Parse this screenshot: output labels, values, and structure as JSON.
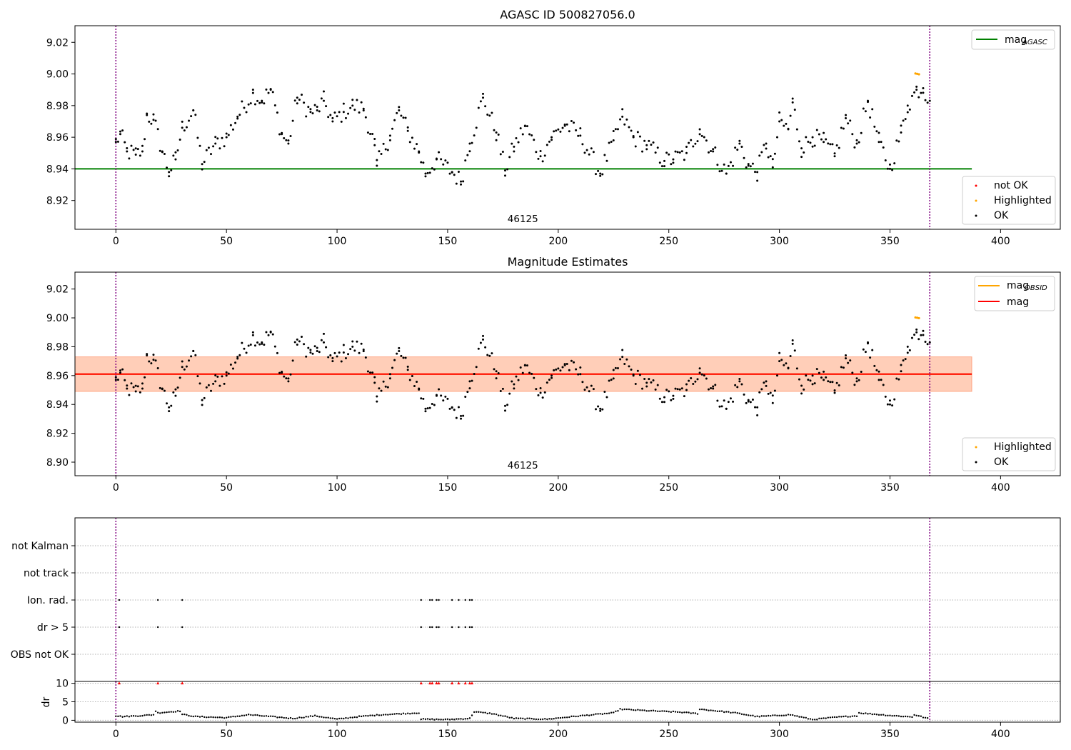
{
  "chart_data": [
    {
      "type": "scatter",
      "title": "AGASC ID 500827056.0",
      "xlim": [
        -18.5,
        427
      ],
      "ylim": [
        8.9018,
        9.0305
      ],
      "x_ticks": [
        0,
        50,
        100,
        150,
        200,
        250,
        300,
        350,
        400
      ],
      "y_ticks": [
        "8.92",
        "8.94",
        "8.96",
        "8.98",
        "9.00",
        "9.02"
      ],
      "obs_label": {
        "text": "46125",
        "x": 184
      },
      "vlines": [
        0,
        368
      ],
      "hlines": [
        {
          "name": "mag_AGASC",
          "y": 8.94,
          "x_range": [
            -18.5,
            387
          ],
          "color": "#008000"
        }
      ],
      "legend_lines": [
        {
          "label": "mag",
          "subscript": "AGASC",
          "color": "#008000"
        }
      ],
      "legend_markers": [
        {
          "label": "not OK",
          "color": "#ff0000"
        },
        {
          "label": "Highlighted",
          "color": "#ffa500"
        },
        {
          "label": "OK",
          "color": "#000000"
        }
      ],
      "highlighted_points": [
        [
          361.5,
          9.0003
        ],
        [
          362.3,
          9.0001
        ],
        [
          363.1,
          8.9998
        ]
      ],
      "ok_anchor_points": [
        [
          0,
          8.957
        ],
        [
          2,
          8.962
        ],
        [
          5,
          8.951
        ],
        [
          9,
          8.949
        ],
        [
          12,
          8.951
        ],
        [
          14,
          8.974
        ],
        [
          17,
          8.971
        ],
        [
          21,
          8.951
        ],
        [
          24,
          8.938
        ],
        [
          27,
          8.946
        ],
        [
          30,
          8.966
        ],
        [
          35,
          8.977
        ],
        [
          39,
          8.943
        ],
        [
          45,
          8.956
        ],
        [
          50,
          8.96
        ],
        [
          55,
          8.973
        ],
        [
          62,
          8.988
        ],
        [
          66,
          8.983
        ],
        [
          70,
          8.99
        ],
        [
          75,
          8.962
        ],
        [
          78,
          8.956
        ],
        [
          82,
          8.985
        ],
        [
          88,
          8.976
        ],
        [
          91,
          8.977
        ],
        [
          94,
          8.983
        ],
        [
          98,
          8.97
        ],
        [
          103,
          8.976
        ],
        [
          107,
          8.98
        ],
        [
          112,
          8.978
        ],
        [
          117,
          8.955
        ],
        [
          118,
          8.942
        ],
        [
          124,
          8.961
        ],
        [
          128,
          8.977
        ],
        [
          132,
          8.964
        ],
        [
          137,
          8.951
        ],
        [
          140,
          8.937
        ],
        [
          145,
          8.946
        ],
        [
          152,
          8.938
        ],
        [
          156,
          8.932
        ],
        [
          160,
          8.956
        ],
        [
          166,
          8.985
        ],
        [
          172,
          8.963
        ],
        [
          176,
          8.939
        ],
        [
          180,
          8.954
        ],
        [
          185,
          8.967
        ],
        [
          192,
          8.948
        ],
        [
          197,
          8.96
        ],
        [
          203,
          8.968
        ],
        [
          210,
          8.961
        ],
        [
          219,
          8.937
        ],
        [
          225,
          8.958
        ],
        [
          229,
          8.973
        ],
        [
          234,
          8.96
        ],
        [
          240,
          8.955
        ],
        [
          248,
          8.945
        ],
        [
          252,
          8.946
        ],
        [
          258,
          8.95
        ],
        [
          264,
          8.965
        ],
        [
          270,
          8.951
        ],
        [
          276,
          8.937
        ],
        [
          282,
          8.956
        ],
        [
          286,
          8.942
        ],
        [
          290,
          8.938
        ],
        [
          294,
          8.956
        ],
        [
          297,
          8.941
        ],
        [
          300,
          8.97
        ],
        [
          304,
          8.965
        ],
        [
          306,
          8.982
        ],
        [
          310,
          8.953
        ],
        [
          315,
          8.96
        ],
        [
          320,
          8.957
        ],
        [
          325,
          8.948
        ],
        [
          330,
          8.972
        ],
        [
          335,
          8.956
        ],
        [
          340,
          8.983
        ],
        [
          345,
          8.957
        ],
        [
          350,
          8.94
        ],
        [
          355,
          8.963
        ],
        [
          358,
          8.98
        ],
        [
          362,
          8.99
        ],
        [
          365,
          8.991
        ],
        [
          368,
          8.983
        ]
      ],
      "ok_points_total": 368
    },
    {
      "type": "scatter",
      "title": "Magnitude Estimates",
      "xlim": [
        -18.5,
        427
      ],
      "ylim": [
        8.8906,
        9.0317
      ],
      "x_ticks": [
        0,
        50,
        100,
        150,
        200,
        250,
        300,
        350,
        400
      ],
      "y_ticks": [
        "8.90",
        "8.92",
        "8.94",
        "8.96",
        "8.98",
        "9.00",
        "9.02"
      ],
      "obs_label": {
        "text": "46125",
        "x": 184
      },
      "vlines": [
        0,
        368
      ],
      "bands": [
        {
          "name": "mag_OBSID range",
          "y": [
            8.949,
            8.973
          ],
          "x_range": [
            -18.5,
            387
          ],
          "color": "#ffa500"
        },
        {
          "name": "mag range",
          "y": [
            8.949,
            8.973
          ],
          "x_range": [
            -18.5,
            387
          ],
          "color": "#ff0000"
        }
      ],
      "hlines": [
        {
          "name": "mag_OBSID",
          "y": 8.961,
          "x_range": [
            -18.5,
            387
          ],
          "color": "#ffa500"
        },
        {
          "name": "mag",
          "y": 8.961,
          "x_range": [
            -18.5,
            387
          ],
          "color": "#ff0000"
        }
      ],
      "legend_lines": [
        {
          "label": "mag",
          "subscript": "OBSID",
          "color": "#ffa500"
        },
        {
          "label": "mag",
          "subscript": "",
          "color": "#ff0000"
        }
      ],
      "legend_markers": [
        {
          "label": "Highlighted",
          "color": "#ffa500"
        },
        {
          "label": "OK",
          "color": "#000000"
        }
      ],
      "highlighted_points": [
        [
          361.5,
          9.0003
        ],
        [
          362.3,
          9.0001
        ],
        [
          363.1,
          8.9998
        ]
      ],
      "ok_points_same_as_panel": 0
    },
    {
      "type": "scatter",
      "title": "",
      "xlim": [
        -18.5,
        427
      ],
      "categories": [
        "not Kalman",
        "not track",
        "Ion. rad.",
        "dr > 5",
        "OBS not OK"
      ],
      "vlines": [
        0,
        368
      ],
      "flags": {
        "Ion. rad.": [
          1.5,
          19,
          30,
          138,
          142,
          143,
          145,
          146,
          152,
          155,
          158,
          160,
          161
        ],
        "dr > 5": [
          1.5,
          19,
          30,
          138,
          142,
          143,
          145,
          146,
          152,
          155,
          158,
          160,
          161
        ],
        "not Kalman": [],
        "not track": [],
        "OBS not OK": []
      }
    },
    {
      "type": "scatter",
      "title": "",
      "ylabel": "dr",
      "xlim": [
        -18.5,
        427
      ],
      "ylim": [
        -0.5,
        10.5
      ],
      "x_ticks": [
        0,
        50,
        100,
        150,
        200,
        250,
        300,
        350,
        400
      ],
      "y_ticks": [
        0,
        5,
        10
      ],
      "clipped_points_at_10": [
        1.5,
        19,
        30,
        138,
        142,
        143,
        145,
        146,
        152,
        155,
        158,
        160,
        161
      ],
      "dr_anchor_points": [
        [
          0,
          1.2
        ],
        [
          3,
          1.0
        ],
        [
          10,
          1.2
        ],
        [
          17,
          1.5
        ],
        [
          18,
          2.5
        ],
        [
          19,
          2.0
        ],
        [
          29,
          2.5
        ],
        [
          30,
          1.6
        ],
        [
          36,
          1.0
        ],
        [
          50,
          0.7
        ],
        [
          60,
          1.5
        ],
        [
          70,
          1.0
        ],
        [
          80,
          0.5
        ],
        [
          90,
          1.2
        ],
        [
          100,
          0.3
        ],
        [
          110,
          1.0
        ],
        [
          120,
          1.5
        ],
        [
          130,
          1.8
        ],
        [
          137,
          2.0
        ],
        [
          138,
          0.3
        ],
        [
          150,
          0.2
        ],
        [
          160,
          0.5
        ],
        [
          162,
          2.3
        ],
        [
          170,
          1.8
        ],
        [
          180,
          0.5
        ],
        [
          195,
          0.3
        ],
        [
          210,
          1.2
        ],
        [
          225,
          2.0
        ],
        [
          228,
          3.0
        ],
        [
          240,
          2.6
        ],
        [
          255,
          2.2
        ],
        [
          263,
          1.8
        ],
        [
          264,
          3.0
        ],
        [
          280,
          2.0
        ],
        [
          290,
          1.0
        ],
        [
          305,
          1.5
        ],
        [
          315,
          0.2
        ],
        [
          325,
          0.8
        ],
        [
          335,
          1.2
        ],
        [
          336,
          2.0
        ],
        [
          350,
          1.3
        ],
        [
          360,
          0.9
        ],
        [
          361,
          1.5
        ],
        [
          367,
          0.5
        ]
      ]
    }
  ]
}
